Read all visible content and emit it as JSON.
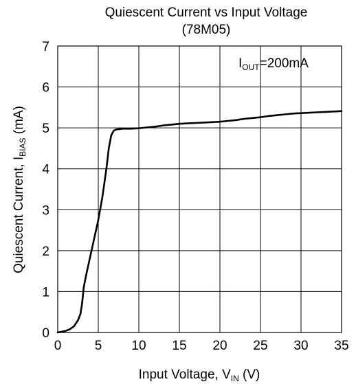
{
  "chart_data": {
    "type": "line",
    "title": "Quiescent Current vs Input Voltage",
    "subtitle": "(78M05)",
    "xlabel": {
      "main": "Input Voltage, V",
      "sub": "IN",
      "suffix": " (V)"
    },
    "ylabel": {
      "main": "Quiescent Current, I",
      "sub": "BIAS",
      "suffix": " (mA)"
    },
    "annotation": {
      "main": "I",
      "sub": "OUT",
      "suffix": "=200mA"
    },
    "xlim": [
      0,
      35
    ],
    "ylim": [
      0,
      7
    ],
    "xticks": [
      0,
      5,
      10,
      15,
      20,
      25,
      30,
      35
    ],
    "yticks": [
      0,
      1,
      2,
      3,
      4,
      5,
      6,
      7
    ],
    "grid": true,
    "line_color": "#000000",
    "series": [
      {
        "x": [
          0,
          0.5,
          1,
          1.5,
          2,
          2.5,
          2.8,
          3.0,
          3.2,
          3.5,
          4.0,
          4.5,
          5.0,
          5.5,
          6.0,
          6.3,
          6.6,
          6.9,
          7.2,
          7.6,
          8,
          9,
          10,
          11,
          12,
          13,
          14,
          15,
          16,
          17,
          18,
          19,
          20,
          21,
          22,
          23,
          24,
          25,
          26,
          27,
          28,
          29,
          30,
          31,
          32,
          33,
          34,
          35
        ],
        "y": [
          0,
          0.02,
          0.04,
          0.08,
          0.15,
          0.3,
          0.45,
          0.7,
          1.1,
          1.4,
          1.85,
          2.3,
          2.75,
          3.3,
          4.0,
          4.5,
          4.82,
          4.93,
          4.96,
          4.97,
          4.98,
          4.98,
          4.99,
          5.01,
          5.03,
          5.06,
          5.08,
          5.1,
          5.11,
          5.12,
          5.13,
          5.14,
          5.15,
          5.17,
          5.19,
          5.22,
          5.24,
          5.26,
          5.29,
          5.31,
          5.33,
          5.35,
          5.36,
          5.37,
          5.38,
          5.39,
          5.4,
          5.41
        ]
      }
    ]
  }
}
